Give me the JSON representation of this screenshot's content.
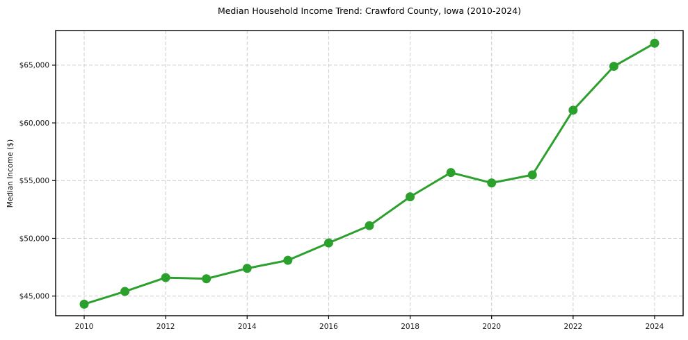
{
  "page": {
    "background_color": "#ffffff"
  },
  "chart_data": {
    "type": "line",
    "title": "Median Household Income Trend: Crawford County, Iowa (2010-2024)",
    "xlabel": "",
    "ylabel": "Median Income ($)",
    "x": [
      2010,
      2011,
      2012,
      2013,
      2014,
      2015,
      2016,
      2017,
      2018,
      2019,
      2020,
      2021,
      2022,
      2023,
      2024
    ],
    "values": [
      44300,
      45400,
      46600,
      46500,
      47400,
      48100,
      49600,
      51100,
      53600,
      55700,
      54800,
      55500,
      61100,
      64900,
      66900
    ],
    "series_name": "Median Household Income",
    "xlim": [
      2009.3,
      2024.7
    ],
    "ylim": [
      43300,
      68000
    ],
    "xticks": [
      2010,
      2012,
      2014,
      2016,
      2018,
      2020,
      2022,
      2024
    ],
    "yticks": [
      45000,
      50000,
      55000,
      60000,
      65000
    ],
    "ytick_prefix": "$",
    "grid": true,
    "grid_style": "dashed",
    "legend_position": "none",
    "line_color": "#2ca02c",
    "marker": "circle",
    "marker_radius": 6.5,
    "line_width": 3,
    "grid_color": "#cccccc",
    "frame_color": "#000000",
    "tick_color": "#000000",
    "text_color": "#1a1a1a"
  }
}
